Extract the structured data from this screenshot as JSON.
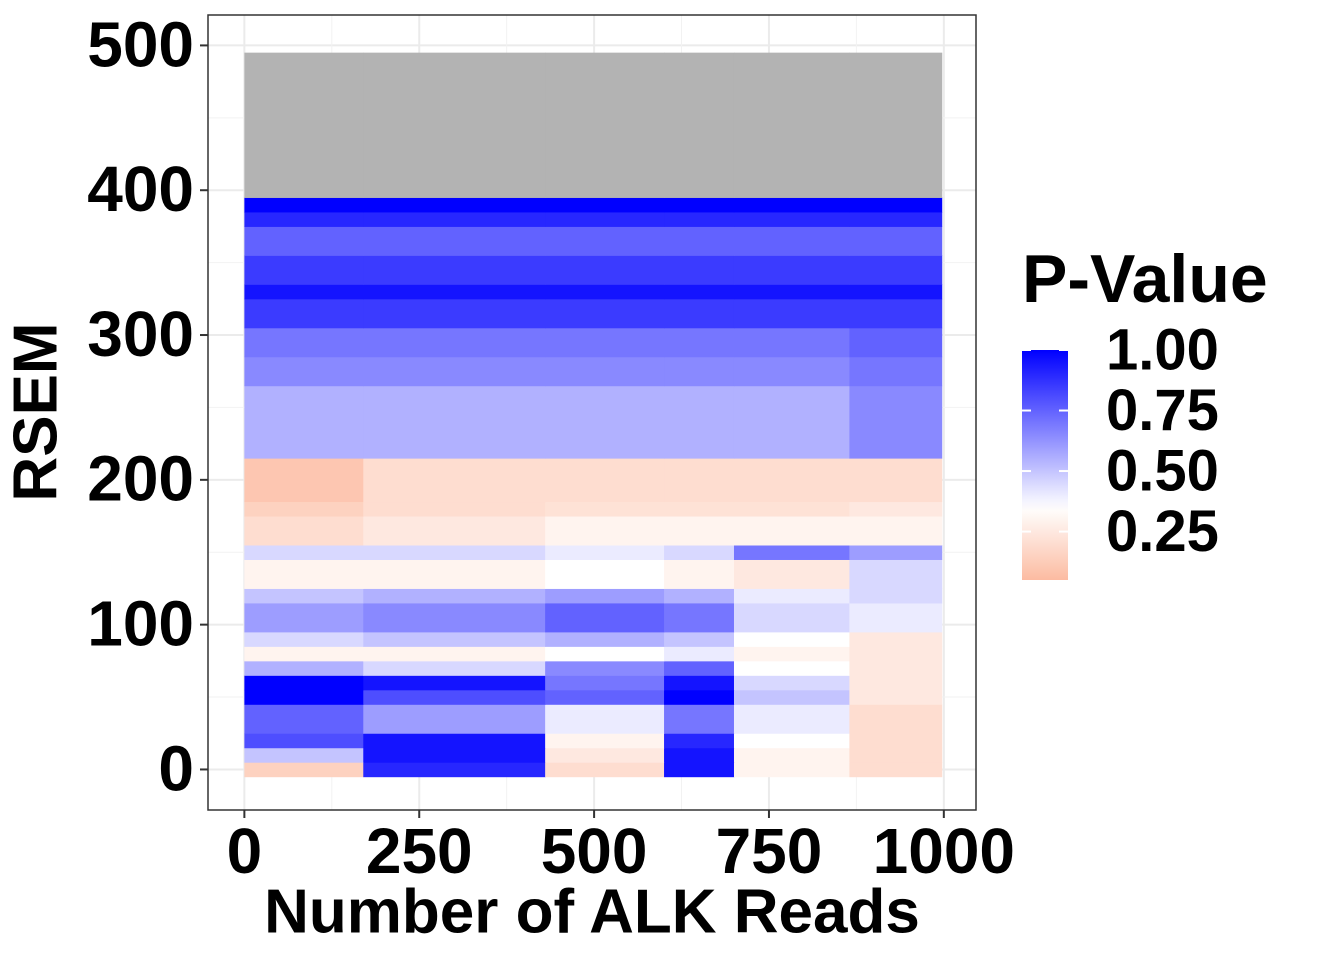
{
  "chart_data": {
    "type": "heatmap",
    "x_label": "Number of ALK Reads",
    "y_label": "RSEM",
    "legend_title": "P-Value",
    "x_edges": [
      0,
      170,
      430,
      600,
      700,
      865,
      997
    ],
    "y_edges": [
      -5,
      5,
      15,
      25,
      45,
      55,
      65,
      75,
      85,
      95,
      115,
      125,
      145,
      155,
      175,
      185,
      215,
      265,
      285,
      305,
      325,
      335,
      355,
      375,
      385,
      395,
      495
    ],
    "values": [
      [
        0.15,
        0.9,
        0.2,
        0.95,
        0.3,
        0.2
      ],
      [
        0.5,
        0.95,
        0.25,
        0.95,
        0.3,
        0.2
      ],
      [
        0.8,
        0.95,
        0.3,
        0.9,
        0.35,
        0.2
      ],
      [
        0.75,
        0.6,
        0.4,
        0.7,
        0.4,
        0.2
      ],
      [
        1.0,
        0.8,
        0.75,
        1.0,
        0.5,
        0.25
      ],
      [
        1.0,
        0.95,
        0.7,
        0.95,
        0.45,
        0.25
      ],
      [
        0.55,
        0.45,
        0.65,
        0.75,
        0.35,
        0.25
      ],
      [
        0.3,
        0.3,
        0.35,
        0.4,
        0.3,
        0.25
      ],
      [
        0.45,
        0.5,
        0.55,
        0.5,
        0.35,
        0.25
      ],
      [
        0.6,
        0.65,
        0.75,
        0.7,
        0.45,
        0.4
      ],
      [
        0.5,
        0.55,
        0.6,
        0.55,
        0.4,
        0.45
      ],
      [
        0.3,
        0.3,
        0.35,
        0.3,
        0.25,
        0.45
      ],
      [
        0.45,
        0.45,
        0.4,
        0.45,
        0.7,
        0.6
      ],
      [
        0.2,
        0.25,
        0.3,
        0.3,
        0.3,
        0.3
      ],
      [
        0.15,
        0.2,
        0.22,
        0.22,
        0.22,
        0.25
      ],
      [
        0.1,
        0.2,
        0.2,
        0.2,
        0.2,
        0.2
      ],
      [
        0.55,
        0.55,
        0.55,
        0.55,
        0.55,
        0.65
      ],
      [
        0.65,
        0.65,
        0.65,
        0.65,
        0.65,
        0.7
      ],
      [
        0.7,
        0.7,
        0.7,
        0.7,
        0.7,
        0.75
      ],
      [
        0.85,
        0.85,
        0.85,
        0.85,
        0.85,
        0.85
      ],
      [
        0.95,
        0.95,
        0.95,
        0.95,
        0.95,
        0.95
      ],
      [
        0.85,
        0.85,
        0.85,
        0.85,
        0.85,
        0.85
      ],
      [
        0.75,
        0.75,
        0.75,
        0.75,
        0.75,
        0.75
      ],
      [
        0.9,
        0.9,
        0.9,
        0.9,
        0.9,
        0.9
      ],
      [
        1.0,
        1.0,
        1.0,
        1.0,
        1.0,
        1.0
      ],
      [
        null,
        null,
        null,
        null,
        null,
        null
      ]
    ],
    "xlim": [
      -52,
      1046
    ],
    "ylim": [
      -28,
      521
    ],
    "xticks": [
      0,
      250,
      500,
      750,
      1000
    ],
    "yticks": [
      0,
      100,
      200,
      300,
      400,
      500
    ],
    "grid": true,
    "na_color": "#b3b3b3",
    "color_scale": {
      "low": "#fcbba1",
      "mid": "#ffffff",
      "high": "#0000ff",
      "midpoint": 0.35,
      "limits": [
        0.05,
        1.0
      ]
    },
    "legend_ticks": [
      0.25,
      {
        "value": 0.5,
        "label": "0.50"
      },
      0.75,
      {
        "value": 1.0,
        "label": "1.00"
      }
    ]
  }
}
